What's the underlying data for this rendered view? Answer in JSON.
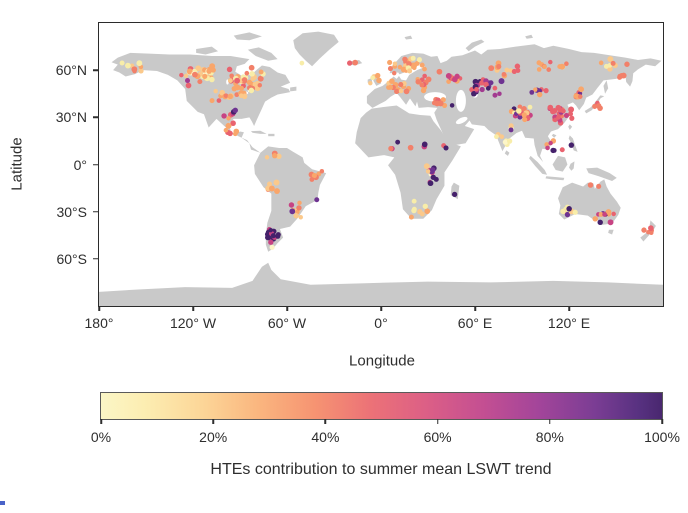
{
  "figure": {
    "background": "#ffffff",
    "text_color": "#2e2e2e",
    "artifact_color": "#4a63c8"
  },
  "map": {
    "land_color": "#c9c9c9",
    "ocean_color": "#ffffff",
    "frame_color": "#2b2b2b"
  },
  "axes": {
    "y_label": "Latitude",
    "x_label": "Longitude",
    "y_ticks": [
      {
        "label": "60°N",
        "lat": 60
      },
      {
        "label": "30°N",
        "lat": 30
      },
      {
        "label": "0°",
        "lat": 0
      },
      {
        "label": "30°S",
        "lat": -30
      },
      {
        "label": "60°S",
        "lat": -60
      }
    ],
    "x_ticks": [
      {
        "label": "180°",
        "lon": -180
      },
      {
        "label": "120° W",
        "lon": -120
      },
      {
        "label": "60° W",
        "lon": -60
      },
      {
        "label": "0°",
        "lon": 0
      },
      {
        "label": "60° E",
        "lon": 60
      },
      {
        "label": "120° E",
        "lon": 120
      }
    ]
  },
  "colorbar": {
    "label": "HTEs contribution to summer mean LSWT trend",
    "ticks": [
      {
        "label": "0%",
        "value": 0
      },
      {
        "label": "20%",
        "value": 20
      },
      {
        "label": "40%",
        "value": 40
      },
      {
        "label": "60%",
        "value": 60
      },
      {
        "label": "80%",
        "value": 80
      },
      {
        "label": "100%",
        "value": 100
      }
    ],
    "gradient_stops": [
      {
        "at": 0,
        "color": "#fbf6c6"
      },
      {
        "at": 8,
        "color": "#fcedb1"
      },
      {
        "at": 18,
        "color": "#fcd698"
      },
      {
        "at": 28,
        "color": "#fab67f"
      },
      {
        "at": 38,
        "color": "#f69472"
      },
      {
        "at": 48,
        "color": "#ec7277"
      },
      {
        "at": 58,
        "color": "#dc5f86"
      },
      {
        "at": 68,
        "color": "#c44f92"
      },
      {
        "at": 78,
        "color": "#a3459a"
      },
      {
        "at": 88,
        "color": "#7b3d94"
      },
      {
        "at": 96,
        "color": "#573180"
      },
      {
        "at": 100,
        "color": "#49276f"
      }
    ]
  },
  "chart_data": {
    "type": "scatter",
    "subtype": "geographic-dot-map",
    "projection": "equirectangular",
    "lon_range": [
      -180,
      180
    ],
    "lat_range": [
      -90,
      90
    ],
    "value_label": "HTEs contribution to summer mean LSWT trend (%)",
    "value_range_pct": [
      0,
      100
    ],
    "dot_radius_units": 1.65,
    "palette": {
      "cy": "#fdf6c8",
      "y": "#f8eda9",
      "po": "#fbc98b",
      "o": "#f9a66b",
      "s": "#f28069",
      "r": "#e9636f",
      "m": "#c74383",
      "dm": "#a23b90",
      "p": "#6e3391",
      "dp": "#45216b"
    },
    "clusters": [
      {
        "name": "alaska",
        "lon": [
          -166,
          -146
        ],
        "lat": [
          57,
          66
        ],
        "n": 8,
        "colors": [
          "y",
          "o",
          "po",
          "s",
          "y",
          "r",
          "po",
          "o"
        ]
      },
      {
        "name": "canada-west",
        "lon": [
          -130,
          -104
        ],
        "lat": [
          50,
          64
        ],
        "n": 32,
        "colors": [
          "y",
          "po",
          "o",
          "y",
          "o",
          "s",
          "po",
          "cy",
          "o",
          "r"
        ]
      },
      {
        "name": "canada-east",
        "lon": [
          -104,
          -70
        ],
        "lat": [
          45,
          62
        ],
        "n": 42,
        "colors": [
          "o",
          "po",
          "y",
          "s",
          "o",
          "r",
          "po",
          "o",
          "y",
          "s"
        ]
      },
      {
        "name": "us-north",
        "lon": [
          -122,
          -74
        ],
        "lat": [
          38,
          48
        ],
        "n": 16,
        "colors": [
          "o",
          "s",
          "r",
          "po",
          "o"
        ]
      },
      {
        "name": "us-south-mexico",
        "lon": [
          -106,
          -86
        ],
        "lat": [
          17,
          34
        ],
        "n": 11,
        "colors": [
          "o",
          "s",
          "r",
          "m",
          "o"
        ]
      },
      {
        "name": "scandinavia",
        "lon": [
          5,
          30
        ],
        "lat": [
          55,
          69
        ],
        "n": 26,
        "colors": [
          "o",
          "s",
          "po",
          "o",
          "y",
          "s",
          "o"
        ]
      },
      {
        "name": "uk-ireland",
        "lon": [
          -9,
          0
        ],
        "lat": [
          51,
          58
        ],
        "n": 5,
        "colors": [
          "o",
          "po",
          "y"
        ]
      },
      {
        "name": "europe-central",
        "lon": [
          -2,
          20
        ],
        "lat": [
          43,
          54
        ],
        "n": 15,
        "colors": [
          "o",
          "s",
          "po",
          "o"
        ]
      },
      {
        "name": "europe-east",
        "lon": [
          20,
          34
        ],
        "lat": [
          45,
          57
        ],
        "n": 12,
        "colors": [
          "o",
          "s",
          "r"
        ]
      },
      {
        "name": "turkey-caucasus",
        "lon": [
          28,
          48
        ],
        "lat": [
          36,
          43
        ],
        "n": 7,
        "colors": [
          "s",
          "r",
          "o",
          "m"
        ]
      },
      {
        "name": "russia-west",
        "lon": [
          36,
          54
        ],
        "lat": [
          50,
          61
        ],
        "n": 10,
        "colors": [
          "r",
          "s",
          "m",
          "o"
        ]
      },
      {
        "name": "kazakh-ural",
        "lon": [
          55,
          80
        ],
        "lat": [
          43,
          58
        ],
        "n": 24,
        "colors": [
          "dp",
          "p",
          "m",
          "dm",
          "dp",
          "r",
          "dp"
        ]
      },
      {
        "name": "siberia-west",
        "lon": [
          62,
          90
        ],
        "lat": [
          56,
          67
        ],
        "n": 13,
        "colors": [
          "o",
          "s",
          "r",
          "po"
        ]
      },
      {
        "name": "siberia-central",
        "lon": [
          92,
          125
        ],
        "lat": [
          56,
          68
        ],
        "n": 11,
        "colors": [
          "o",
          "r",
          "s",
          "y"
        ]
      },
      {
        "name": "siberia-east",
        "lon": [
          128,
          162
        ],
        "lat": [
          60,
          69
        ],
        "n": 8,
        "colors": [
          "y",
          "o",
          "po",
          "s",
          "r"
        ]
      },
      {
        "name": "tibet-plateau",
        "lon": [
          78,
          100
        ],
        "lat": [
          28,
          38
        ],
        "n": 24,
        "colors": [
          "y",
          "o",
          "po",
          "s",
          "r",
          "p",
          "dp",
          "m",
          "y",
          "o"
        ]
      },
      {
        "name": "mongolia",
        "lon": [
          92,
          112
        ],
        "lat": [
          44,
          50
        ],
        "n": 7,
        "colors": [
          "r",
          "o",
          "p",
          "s"
        ]
      },
      {
        "name": "china-east",
        "lon": [
          106,
          123
        ],
        "lat": [
          26,
          39
        ],
        "n": 22,
        "colors": [
          "r",
          "r",
          "s",
          "m",
          "r",
          "dm",
          "r"
        ]
      },
      {
        "name": "china-northeast",
        "lon": [
          120,
          132
        ],
        "lat": [
          41,
          49
        ],
        "n": 8,
        "colors": [
          "r",
          "o",
          "s",
          "p"
        ]
      },
      {
        "name": "japan",
        "lon": [
          135,
          141
        ],
        "lat": [
          34,
          43
        ],
        "n": 5,
        "colors": [
          "r",
          "s",
          "m"
        ]
      },
      {
        "name": "india",
        "lon": [
          72,
          88
        ],
        "lat": [
          10,
          27
        ],
        "n": 10,
        "colors": [
          "y",
          "cy",
          "po",
          "y",
          "y"
        ]
      },
      {
        "name": "southeast-asia",
        "lon": [
          98,
          122
        ],
        "lat": [
          3,
          16
        ],
        "n": 6,
        "colors": [
          "m",
          "dp",
          "o",
          "r",
          "y"
        ]
      },
      {
        "name": "africa-sahel",
        "lon": [
          -4,
          36
        ],
        "lat": [
          8,
          15
        ],
        "n": 6,
        "colors": [
          "r",
          "s",
          "m",
          "dp"
        ]
      },
      {
        "name": "africa-east-lakes",
        "lon": [
          28,
          36
        ],
        "lat": [
          -14,
          3
        ],
        "n": 12,
        "colors": [
          "y",
          "p",
          "dp",
          "cy",
          "po",
          "m"
        ]
      },
      {
        "name": "africa-south",
        "lon": [
          18,
          32
        ],
        "lat": [
          -34,
          -22
        ],
        "n": 7,
        "colors": [
          "y",
          "cy",
          "o",
          "po"
        ]
      },
      {
        "name": "southamerica-north",
        "lon": [
          -76,
          -60
        ],
        "lat": [
          1,
          9
        ],
        "n": 4,
        "colors": [
          "o",
          "po",
          "s"
        ]
      },
      {
        "name": "altiplano",
        "lon": [
          -75,
          -65
        ],
        "lat": [
          -20,
          -10
        ],
        "n": 6,
        "colors": [
          "o",
          "s",
          "po"
        ]
      },
      {
        "name": "brazil-east",
        "lon": [
          -46,
          -35
        ],
        "lat": [
          -13,
          -3
        ],
        "n": 6,
        "colors": [
          "o",
          "po",
          "s"
        ]
      },
      {
        "name": "brazil-south",
        "lon": [
          -60,
          -49
        ],
        "lat": [
          -35,
          -22
        ],
        "n": 9,
        "colors": [
          "o",
          "m",
          "s",
          "p",
          "po"
        ]
      },
      {
        "name": "patagonia-andes",
        "lon": [
          -74,
          -65
        ],
        "lat": [
          -53,
          -34
        ],
        "n": 16,
        "colors": [
          "dp",
          "dp",
          "p",
          "m",
          "dm"
        ]
      },
      {
        "name": "australia-west",
        "lon": [
          112,
          126
        ],
        "lat": [
          -34,
          -25
        ],
        "n": 8,
        "colors": [
          "y",
          "po",
          "o",
          "p",
          "dp"
        ]
      },
      {
        "name": "australia-southeast",
        "lon": [
          136,
          151
        ],
        "lat": [
          -38,
          -27
        ],
        "n": 12,
        "colors": [
          "r",
          "s",
          "p",
          "o",
          "m",
          "dp"
        ]
      },
      {
        "name": "australia-north",
        "lon": [
          131,
          142
        ],
        "lat": [
          -16,
          -12
        ],
        "n": 2,
        "colors": [
          "r",
          "s"
        ]
      },
      {
        "name": "new-zealand",
        "lon": [
          167,
          177
        ],
        "lat": [
          -46,
          -36
        ],
        "n": 5,
        "colors": [
          "r",
          "s",
          "o"
        ]
      },
      {
        "name": "kamchatka-okhotsk",
        "lon": [
          148,
          160
        ],
        "lat": [
          52,
          60
        ],
        "n": 4,
        "colors": [
          "o",
          "s",
          "r"
        ]
      }
    ],
    "points": [
      {
        "name": "greenland-west",
        "lon": -50.5,
        "lat": 64.5,
        "color": "y"
      },
      {
        "name": "iceland-1",
        "lon": -20,
        "lat": 64.5,
        "color": "r"
      },
      {
        "name": "iceland-2",
        "lon": -16.5,
        "lat": 64.8,
        "color": "s"
      },
      {
        "name": "british-columbia",
        "lon": -123.5,
        "lat": 53.4,
        "color": "dm"
      },
      {
        "name": "us-south-dark-1",
        "lon": -94,
        "lat": 33.5,
        "color": "dp"
      },
      {
        "name": "us-south-dark-2",
        "lon": -93,
        "lat": 34.5,
        "color": "p"
      },
      {
        "name": "brazil-rio",
        "lon": -41,
        "lat": -22.4,
        "color": "p"
      },
      {
        "name": "madagascar",
        "lon": 47,
        "lat": -19,
        "color": "dp"
      },
      {
        "name": "ethiopia-red",
        "lon": 40,
        "lat": 12,
        "color": "r"
      },
      {
        "name": "ethiopia-dark",
        "lon": 41.5,
        "lat": 10.5,
        "color": "dp"
      },
      {
        "name": "philippines",
        "lon": 121.5,
        "lat": 12.3,
        "color": "dp"
      },
      {
        "name": "mekong",
        "lon": 108.3,
        "lat": 13.6,
        "color": "m"
      },
      {
        "name": "patagonia-yellow",
        "lon": -69.5,
        "lat": -52.7,
        "color": "cy"
      },
      {
        "name": "caucasus-dark",
        "lon": 45.4,
        "lat": 37.6,
        "color": "dp"
      },
      {
        "name": "india-purple",
        "lon": 83,
        "lat": 22,
        "color": "p"
      },
      {
        "name": "cape-town",
        "lon": 19.4,
        "lat": -33.5,
        "color": "o"
      }
    ]
  }
}
